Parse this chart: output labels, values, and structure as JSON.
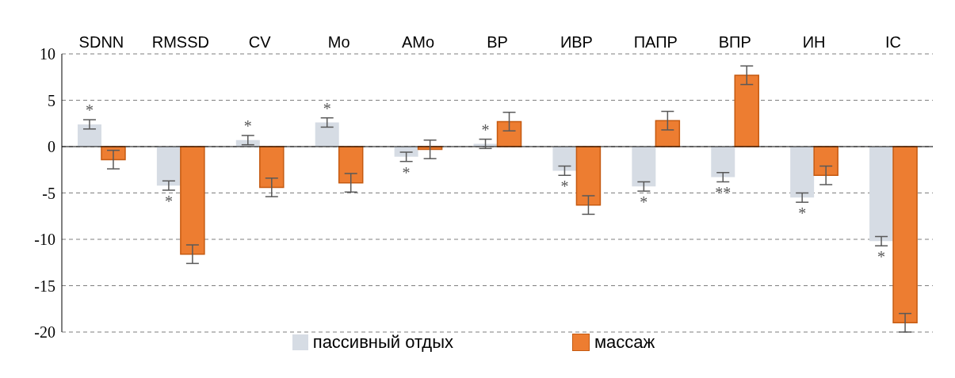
{
  "chart_data": {
    "type": "bar",
    "categories": [
      "SDNN",
      "RMSSD",
      "CV",
      "Mo",
      "AMo",
      "BP",
      "ИВР",
      "ПАПР",
      "ВПР",
      "ИН",
      "IC"
    ],
    "series": [
      {
        "name": "пассивный отдых",
        "color": "#d6dce4",
        "values": [
          2.4,
          -4.2,
          0.7,
          2.6,
          -1.1,
          0.3,
          -2.6,
          -4.3,
          -3.3,
          -5.5,
          -10.2
        ],
        "errors": [
          0.5,
          0.5,
          0.5,
          0.5,
          0.5,
          0.5,
          0.5,
          0.5,
          0.5,
          0.5,
          0.5
        ],
        "value_labels": [
          "*",
          "*",
          "*",
          "*",
          "*",
          "*",
          "*",
          "*",
          "**",
          "*",
          "*"
        ]
      },
      {
        "name": "массаж",
        "color": "#ed7d31",
        "values": [
          -1.4,
          -11.6,
          -4.4,
          -3.9,
          -0.3,
          2.7,
          -6.3,
          2.8,
          7.7,
          -3.1,
          -19.0
        ],
        "errors": [
          1.0,
          1.0,
          1.0,
          1.0,
          1.0,
          1.0,
          1.0,
          1.0,
          1.0,
          1.0,
          1.0
        ]
      }
    ],
    "ylim": [
      -20,
      10
    ],
    "yticks": [
      -20,
      -15,
      -10,
      -5,
      0,
      5,
      10
    ],
    "grid": "y",
    "legend": "bottom"
  }
}
